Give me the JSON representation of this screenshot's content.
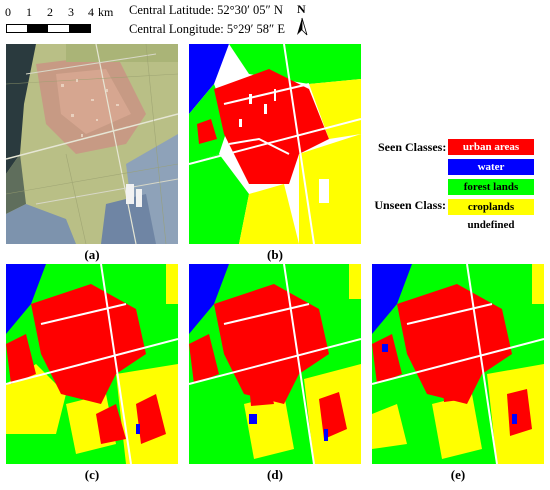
{
  "scale_bar": {
    "ticks": [
      "0",
      "1",
      "2",
      "3",
      "4"
    ],
    "unit": "km"
  },
  "coordinates": {
    "latitude": "Central Latitude: 52°30′ 05″  N",
    "longitude": "Central Longitude: 5°29′ 58″  E"
  },
  "north_arrow": {
    "label": "N",
    "icon": "north-arrow-icon"
  },
  "legend": {
    "seen_title": "Seen Classes:",
    "unseen_title": "Unseen Class:",
    "classes": [
      {
        "label": "urban areas",
        "color": "#ff0000",
        "text_color": "#ffffff"
      },
      {
        "label": "water",
        "color": "#0000ff",
        "text_color": "#ffffff"
      },
      {
        "label": "forest lands",
        "color": "#00ff00",
        "text_color": "#000000"
      },
      {
        "label": "croplands",
        "color": "#ffff00",
        "text_color": "#000000"
      },
      {
        "label": "undefined",
        "color": "#ffffff",
        "text_color": "#000000"
      }
    ]
  },
  "panels": [
    {
      "caption": "(a)",
      "kind": "sar-image"
    },
    {
      "caption": "(b)",
      "kind": "ground-truth-map"
    },
    {
      "caption": "(c)",
      "kind": "classification-map"
    },
    {
      "caption": "(d)",
      "kind": "classification-map"
    },
    {
      "caption": "(e)",
      "kind": "classification-map"
    }
  ],
  "colors": {
    "urban": "#ff0000",
    "water": "#0000ff",
    "forest": "#00ff00",
    "crop": "#ffff00",
    "road": "#ffffff"
  }
}
